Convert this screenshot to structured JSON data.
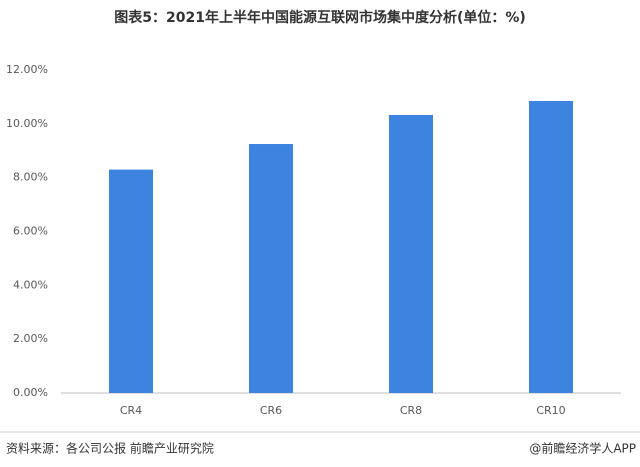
{
  "chart_data": {
    "type": "bar",
    "title": "图表5：2021年上半年中国能源互联网市场集中度分析(单位：%)",
    "categories": [
      "CR4",
      "CR6",
      "CR8",
      "CR10"
    ],
    "values": [
      8.3,
      9.25,
      10.33,
      10.85
    ],
    "color": "#3d83e0",
    "ylim": [
      0,
      12
    ],
    "yticks": [
      {
        "value": 0,
        "label": "0.00%"
      },
      {
        "value": 2,
        "label": "2.00%"
      },
      {
        "value": 4,
        "label": "4.00%"
      },
      {
        "value": 6,
        "label": "6.00%"
      },
      {
        "value": 8,
        "label": "8.00%"
      },
      {
        "value": 10,
        "label": "10.00%"
      },
      {
        "value": 12,
        "label": "12.00%"
      }
    ],
    "grid": false,
    "source": "资料来源：各公司公报 前瞻产业研究院",
    "credit": "@前瞻经济学人APP"
  }
}
